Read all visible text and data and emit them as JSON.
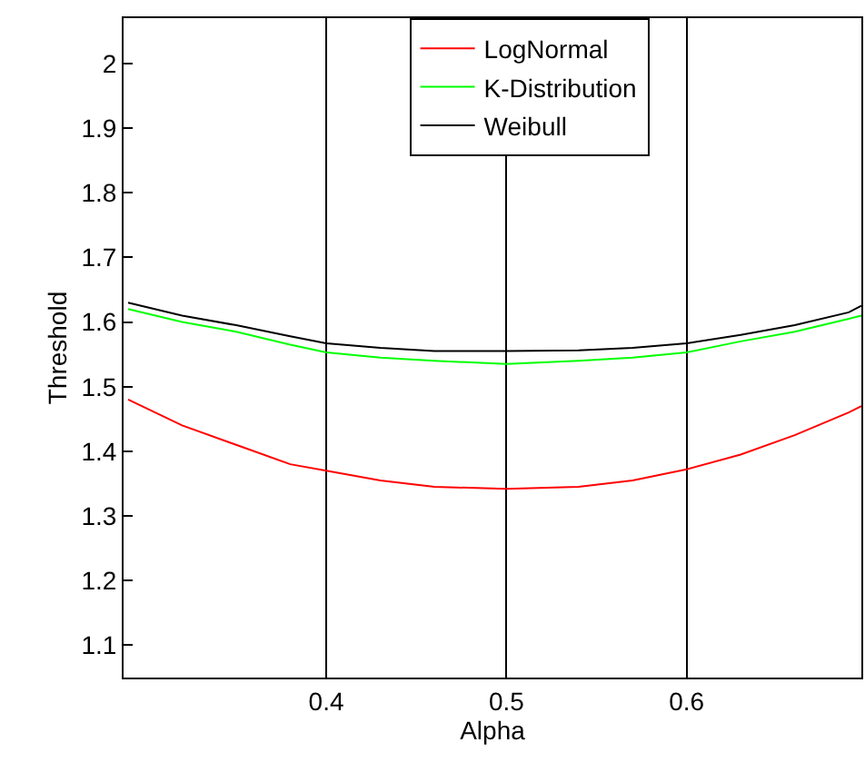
{
  "chart_data": {
    "type": "line",
    "xlabel": "Alpha",
    "ylabel": "Threshold",
    "x": [
      0.29,
      0.32,
      0.35,
      0.38,
      0.4,
      0.43,
      0.46,
      0.5,
      0.54,
      0.57,
      0.6,
      0.63,
      0.66,
      0.69,
      0.697
    ],
    "series": [
      {
        "name": "LogNormal",
        "color": "#ff0000",
        "values": [
          1.48,
          1.44,
          1.41,
          1.38,
          1.37,
          1.355,
          1.345,
          1.342,
          1.345,
          1.355,
          1.372,
          1.395,
          1.425,
          1.46,
          1.47
        ]
      },
      {
        "name": "K-Distribution",
        "color": "#00ff00",
        "values": [
          1.62,
          1.6,
          1.585,
          1.565,
          1.553,
          1.545,
          1.54,
          1.535,
          1.54,
          1.545,
          1.553,
          1.57,
          1.585,
          1.605,
          1.61
        ]
      },
      {
        "name": "Weibull",
        "color": "#000000",
        "values": [
          1.63,
          1.61,
          1.595,
          1.578,
          1.567,
          1.56,
          1.555,
          1.555,
          1.556,
          1.56,
          1.567,
          1.58,
          1.595,
          1.615,
          1.625
        ]
      }
    ],
    "xlim": [
      0.2875,
      0.697
    ],
    "xticks": [
      0.4,
      0.5,
      0.6
    ],
    "ylim": [
      1.05,
      2.07
    ],
    "yticks": [
      1.1,
      1.2,
      1.3,
      1.4,
      1.5,
      1.6,
      1.7,
      1.8,
      1.9,
      2
    ],
    "grid": "x",
    "legend": "top",
    "line_style": "solid"
  }
}
